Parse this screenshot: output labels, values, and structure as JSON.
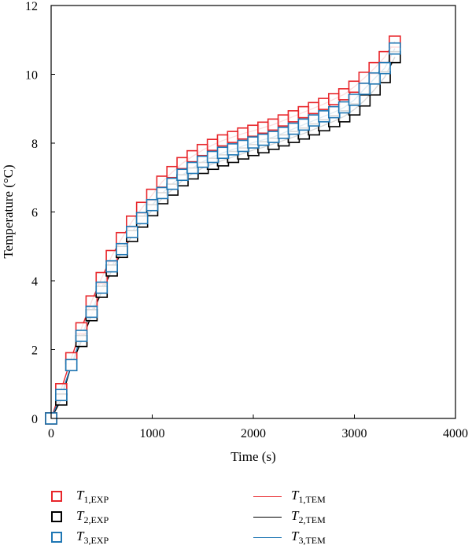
{
  "chart_data": {
    "type": "line",
    "title": "",
    "xlabel": "Time (s)",
    "ylabel": "Temperature (°C)",
    "xlim": [
      0,
      4000
    ],
    "ylim": [
      0,
      12
    ],
    "xticks": [
      "0",
      "1000",
      "2000",
      "3000",
      "4000"
    ],
    "yticks": [
      "0",
      "2",
      "4",
      "6",
      "8",
      "10",
      "12"
    ],
    "grid": false,
    "legend_position": "bottom",
    "x": [
      0,
      100,
      200,
      300,
      400,
      500,
      600,
      700,
      800,
      900,
      1000,
      1100,
      1200,
      1300,
      1400,
      1500,
      1600,
      1700,
      1800,
      1900,
      2000,
      2100,
      2200,
      2300,
      2400,
      2500,
      2600,
      2700,
      2800,
      2900,
      3000,
      3100,
      3200,
      3300,
      3400
    ],
    "series": [
      {
        "name": "T1,EXP",
        "kind": "markers",
        "color": "#e8262b",
        "values": [
          0,
          0.85,
          1.75,
          2.62,
          3.4,
          4.08,
          4.72,
          5.24,
          5.72,
          6.12,
          6.5,
          6.88,
          7.16,
          7.42,
          7.62,
          7.8,
          7.95,
          8.08,
          8.18,
          8.28,
          8.36,
          8.45,
          8.54,
          8.66,
          8.78,
          8.9,
          9.02,
          9.14,
          9.28,
          9.42,
          9.64,
          9.9,
          10.18,
          10.5,
          10.95
        ]
      },
      {
        "name": "T2,EXP",
        "kind": "markers",
        "color": "#000000",
        "values": [
          0,
          0.55,
          1.55,
          2.25,
          3.0,
          3.68,
          4.3,
          4.84,
          5.3,
          5.72,
          6.05,
          6.4,
          6.65,
          6.92,
          7.12,
          7.28,
          7.4,
          7.5,
          7.6,
          7.7,
          7.8,
          7.88,
          7.98,
          8.08,
          8.18,
          8.28,
          8.4,
          8.52,
          8.64,
          8.78,
          8.98,
          9.24,
          9.56,
          9.92,
          10.5
        ]
      },
      {
        "name": "T3,EXP",
        "kind": "markers",
        "color": "#1f77b4",
        "values": [
          0,
          0.68,
          1.55,
          2.4,
          3.1,
          3.8,
          4.42,
          4.92,
          5.42,
          5.82,
          6.2,
          6.55,
          6.82,
          7.08,
          7.28,
          7.46,
          7.6,
          7.72,
          7.82,
          7.92,
          8.02,
          8.1,
          8.18,
          8.3,
          8.42,
          8.54,
          8.66,
          8.78,
          8.9,
          9.04,
          9.26,
          9.58,
          9.88,
          10.18,
          10.75
        ]
      },
      {
        "name": "T1,TEM",
        "kind": "line",
        "color": "#e8262b",
        "values": [
          0,
          0.85,
          1.75,
          2.62,
          3.4,
          4.08,
          4.72,
          5.24,
          5.72,
          6.12,
          6.5,
          6.88,
          7.16,
          7.42,
          7.62,
          7.8,
          7.95,
          8.08,
          8.18,
          8.28,
          8.36,
          8.45,
          8.54,
          8.66,
          8.78,
          8.9,
          9.02,
          9.14,
          9.28,
          9.42,
          9.64,
          9.9,
          10.18,
          10.5,
          10.95
        ]
      },
      {
        "name": "T2,TEM",
        "kind": "line",
        "color": "#000000",
        "values": [
          0,
          0.55,
          1.55,
          2.25,
          3.0,
          3.68,
          4.3,
          4.84,
          5.3,
          5.72,
          6.05,
          6.4,
          6.65,
          6.92,
          7.12,
          7.28,
          7.4,
          7.5,
          7.6,
          7.7,
          7.8,
          7.88,
          7.98,
          8.08,
          8.18,
          8.28,
          8.4,
          8.52,
          8.64,
          8.78,
          8.98,
          9.24,
          9.56,
          9.92,
          10.5
        ]
      },
      {
        "name": "T3,TEM",
        "kind": "line",
        "color": "#1f77b4",
        "values": [
          0,
          0.68,
          1.55,
          2.4,
          3.1,
          3.8,
          4.42,
          4.92,
          5.42,
          5.82,
          6.2,
          6.55,
          6.82,
          7.08,
          7.28,
          7.46,
          7.6,
          7.72,
          7.82,
          7.92,
          8.02,
          8.1,
          8.18,
          8.3,
          8.42,
          8.54,
          8.66,
          8.78,
          8.9,
          9.04,
          9.26,
          9.58,
          9.88,
          10.18,
          10.75
        ]
      }
    ],
    "legend": [
      {
        "symbol": "T",
        "sub": "1,EXP",
        "style": "marker",
        "color": "#e8262b"
      },
      {
        "symbol": "T",
        "sub": "2,EXP",
        "style": "marker",
        "color": "#000000"
      },
      {
        "symbol": "T",
        "sub": "3,EXP",
        "style": "marker",
        "color": "#1f77b4"
      },
      {
        "symbol": "T",
        "sub": "1,TEM",
        "style": "line",
        "color": "#e8262b"
      },
      {
        "symbol": "T",
        "sub": "2,TEM",
        "style": "line",
        "color": "#000000"
      },
      {
        "symbol": "T",
        "sub": "3,TEM",
        "style": "line",
        "color": "#1f77b4"
      }
    ]
  }
}
